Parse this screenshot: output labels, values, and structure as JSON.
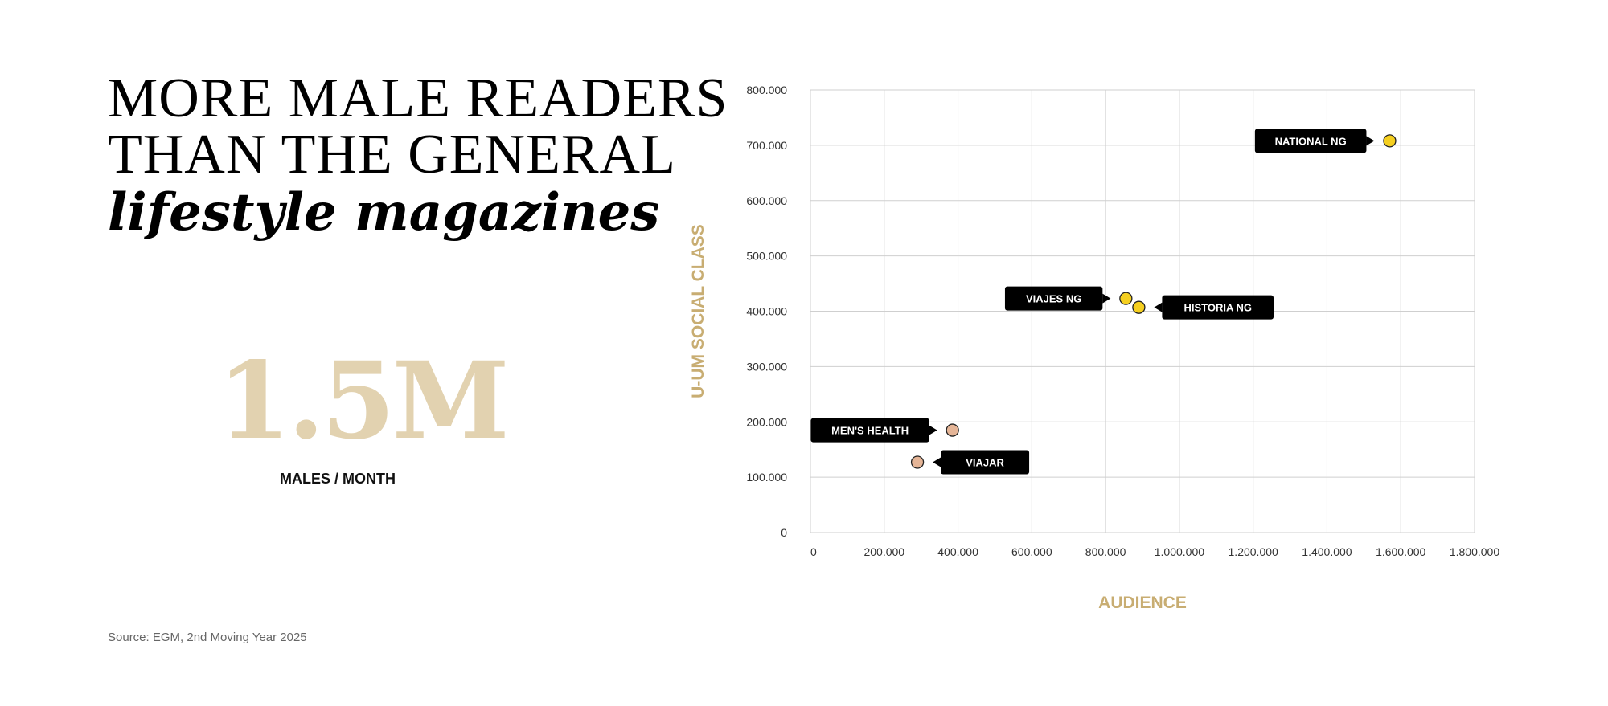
{
  "headline": {
    "line1": "MORE MALE READERS",
    "line2": "THAN THE GENERAL",
    "line3": "lifestyle magazines"
  },
  "stat": {
    "value": "1.5M",
    "label": "MALES / MONTH"
  },
  "source": "Source: EGM, 2nd Moving Year 2025",
  "colors": {
    "accent_gold": "#c8ad72",
    "stat_beige": "#e2d2b0",
    "highlight_yellow": "#f5cf1f",
    "muted_peach": "#e5b597",
    "label_bg": "#000000",
    "grid": "#cfcfcf"
  },
  "chart_data": {
    "type": "scatter",
    "xlabel": "AUDIENCE",
    "ylabel": "U-UM SOCIAL CLASS",
    "xlim": [
      0,
      1800000
    ],
    "ylim": [
      0,
      800000
    ],
    "x_ticks": [
      0,
      200000,
      400000,
      600000,
      800000,
      1000000,
      1200000,
      1400000,
      1600000,
      1800000
    ],
    "x_tick_labels": [
      "0",
      "200.000",
      "400.000",
      "600.000",
      "800.000",
      "1.000.000",
      "1.200.000",
      "1.400.000",
      "1.600.000",
      "1.800.000"
    ],
    "y_ticks": [
      0,
      100000,
      200000,
      300000,
      400000,
      500000,
      600000,
      700000,
      800000
    ],
    "y_tick_labels": [
      "0",
      "100.000",
      "200.000",
      "300.000",
      "400.000",
      "500.000",
      "600.000",
      "700.000",
      "800.000"
    ],
    "grid": true,
    "points": [
      {
        "name": "NATIONAL NG",
        "x": 1570000,
        "y": 708000,
        "color": "#f5cf1f",
        "label_side": "left"
      },
      {
        "name": "VIAJES NG",
        "x": 855000,
        "y": 423000,
        "color": "#f5cf1f",
        "label_side": "left"
      },
      {
        "name": "HISTORIA NG",
        "x": 890000,
        "y": 407000,
        "color": "#f5cf1f",
        "label_side": "right"
      },
      {
        "name": "MEN'S HEALTH",
        "x": 385000,
        "y": 185000,
        "color": "#e5b597",
        "label_side": "left"
      },
      {
        "name": "VIAJAR",
        "x": 290000,
        "y": 127000,
        "color": "#e5b597",
        "label_side": "right"
      }
    ]
  }
}
